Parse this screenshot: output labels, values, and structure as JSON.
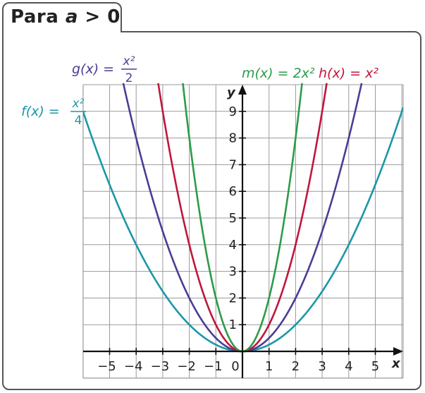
{
  "tab": {
    "prefix": "Para ",
    "var": "a",
    "rel": " > 0"
  },
  "chart_data": {
    "type": "line",
    "title": "Para a > 0",
    "xlabel": "x",
    "ylabel": "y",
    "xlim": [
      -6,
      6
    ],
    "ylim": [
      -1,
      10
    ],
    "grid": true,
    "x_ticks": [
      "−5",
      "−4",
      "−3",
      "−2",
      "−1",
      "1",
      "2",
      "3",
      "4",
      "5"
    ],
    "y_ticks": [
      "1",
      "2",
      "3",
      "4",
      "5",
      "6",
      "7",
      "8",
      "9"
    ],
    "origin_label": "0",
    "series": [
      {
        "name": "f(x) = x²/4",
        "coef": 0.25,
        "color": "#1b97a8",
        "label_name": "f",
        "label_num": "x²",
        "label_den": "4"
      },
      {
        "name": "g(x) = x²/2",
        "coef": 0.5,
        "color": "#4b3c96",
        "label_name": "g",
        "label_num": "x²",
        "label_den": "2"
      },
      {
        "name": "h(x) = x²",
        "coef": 1,
        "color": "#c0163c",
        "label_name": "h",
        "label_rhs": "x²"
      },
      {
        "name": "m(x) = 2x²",
        "coef": 2,
        "color": "#2c9b4a",
        "label_name": "m",
        "label_rhs": "2x²"
      }
    ]
  }
}
